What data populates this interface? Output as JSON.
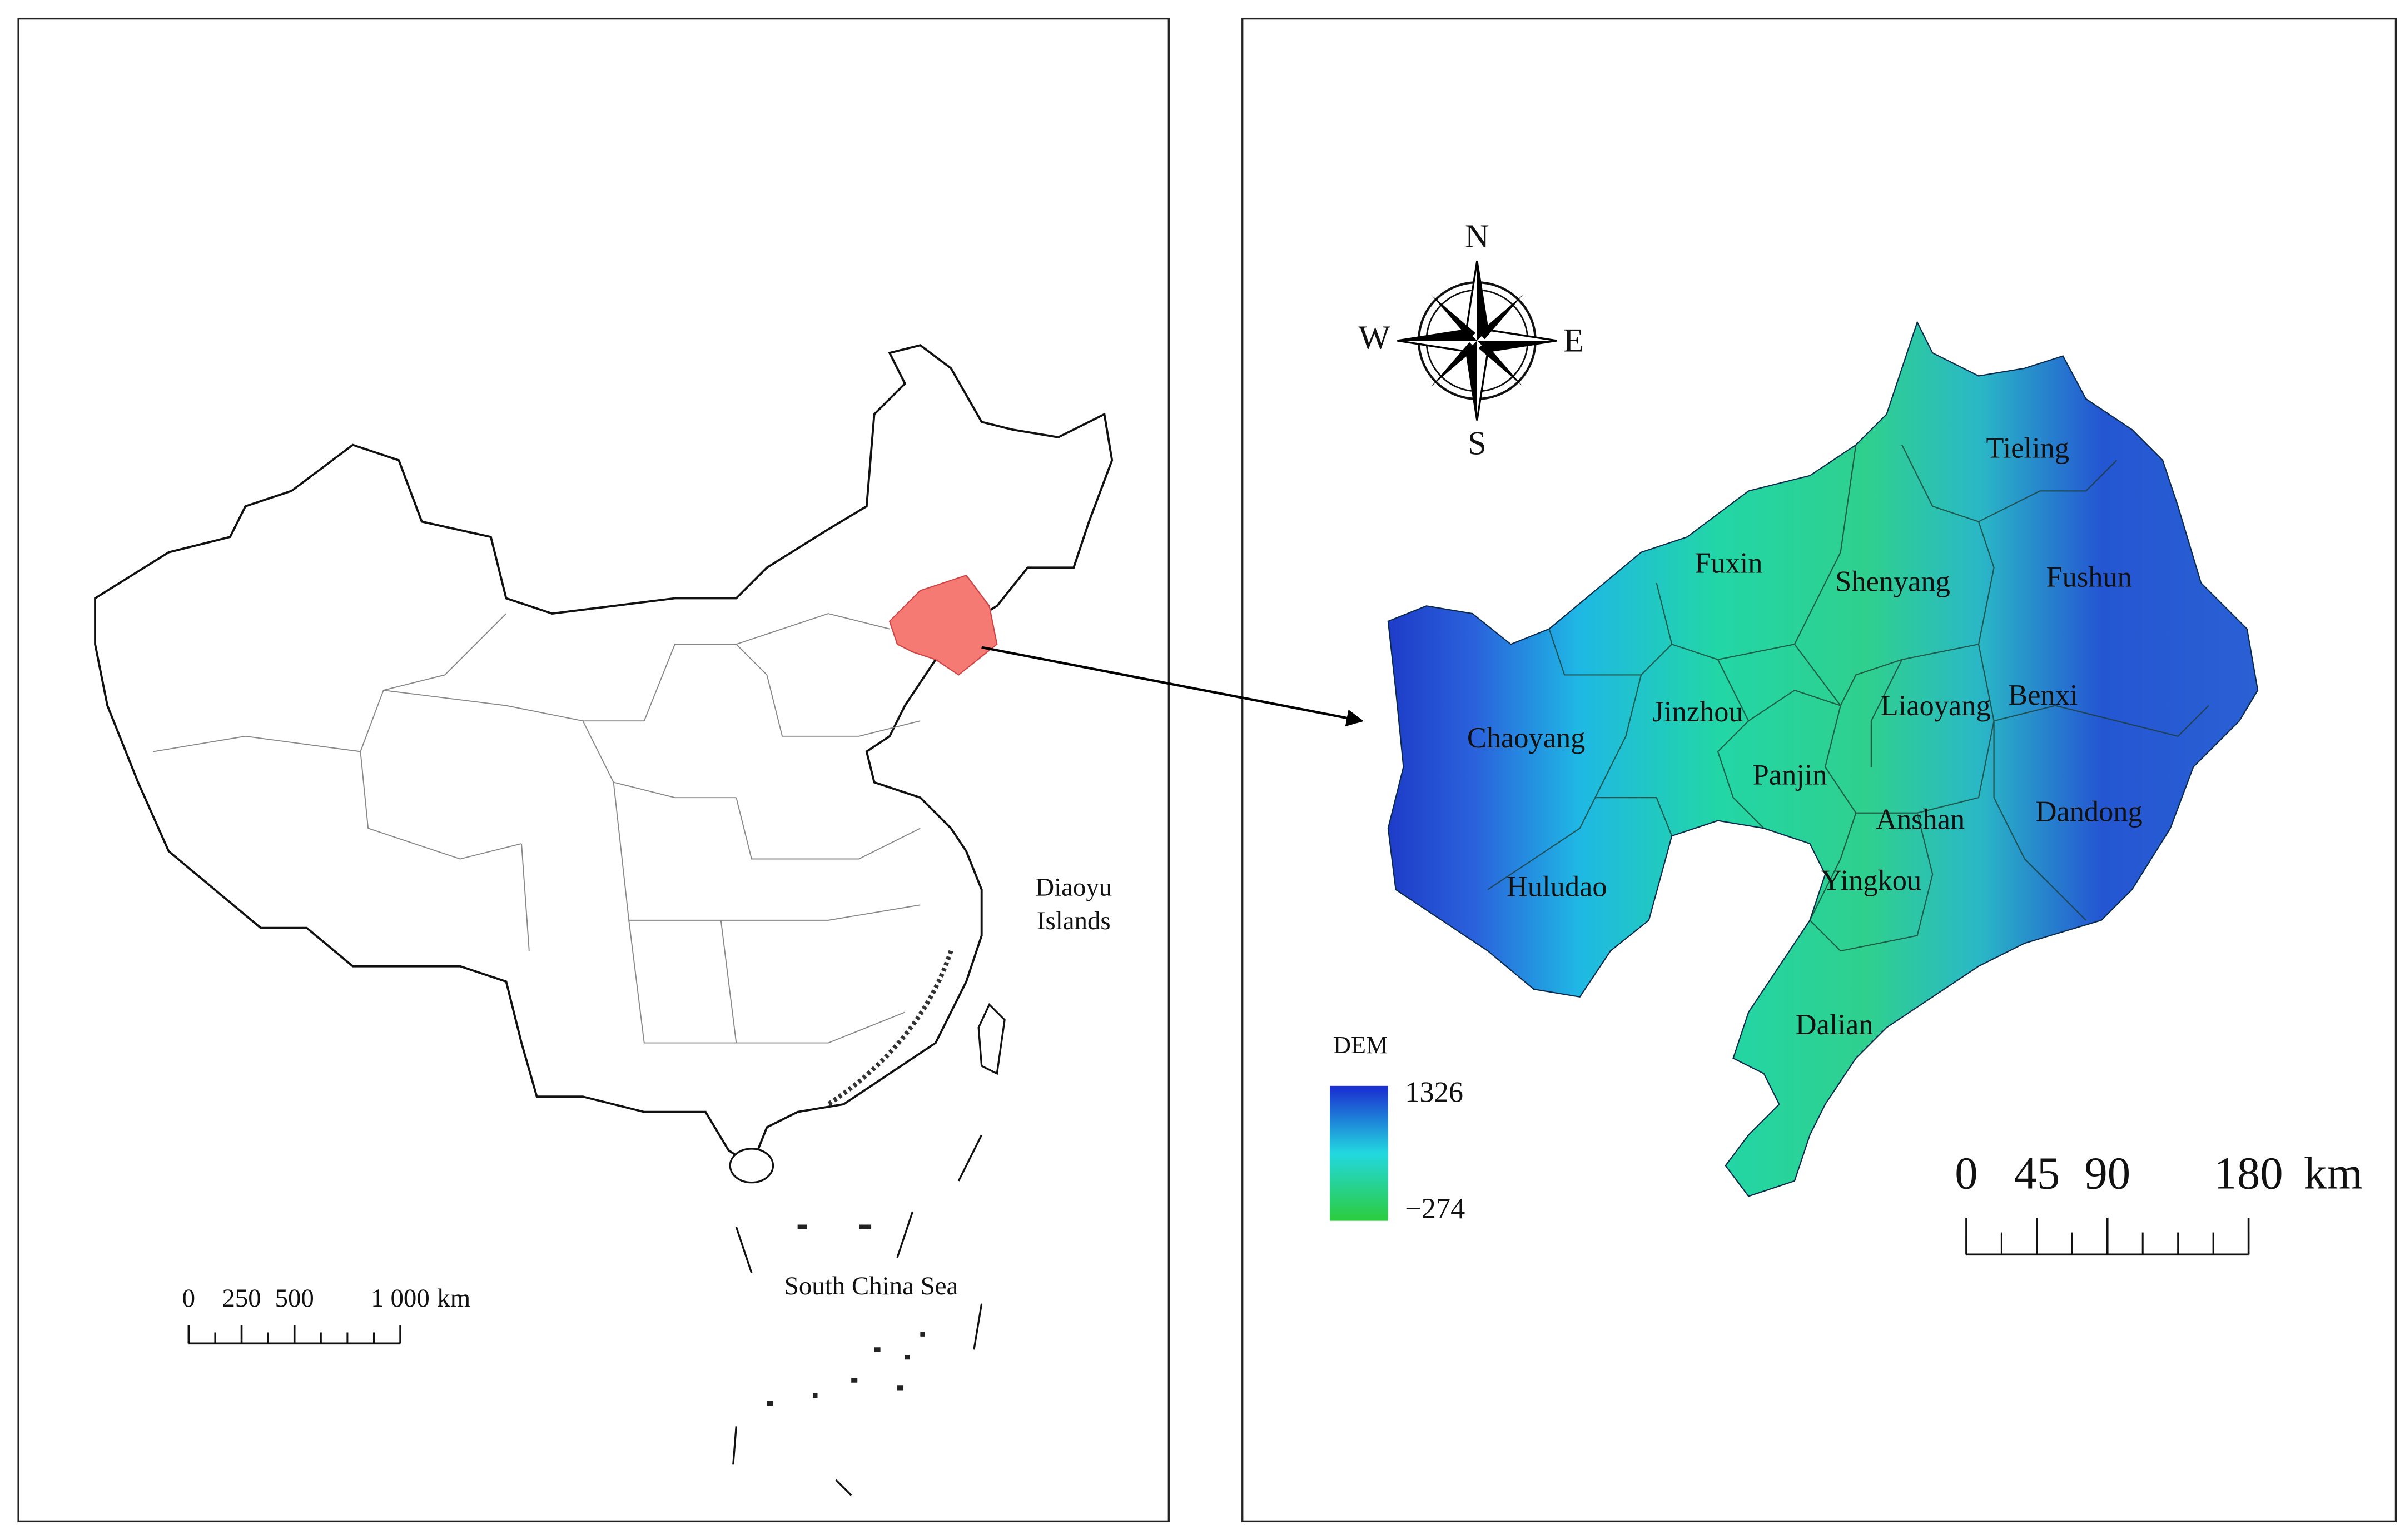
{
  "left_map": {
    "annotations": {
      "diaoyu": [
        "Diaoyu",
        "Islands"
      ],
      "sea": "South China Sea"
    },
    "scale_bar": {
      "ticks": [
        0,
        250,
        500,
        {
          "value": 1000,
          "label": "1 000"
        }
      ],
      "unit": "km"
    }
  },
  "right_map": {
    "compass": {
      "n": "N",
      "s": "S",
      "e": "E",
      "w": "W"
    },
    "cities": [
      "Tieling",
      "Fuxin",
      "Shenyang",
      "Fushun",
      "Liaoyang",
      "Benxi",
      "Chaoyang",
      "Jinzhou",
      "Panjin",
      "Anshan",
      "Dandong",
      "Huludao",
      "Yingkou",
      "Dalian"
    ],
    "legend": {
      "title": "DEM",
      "max": 1326,
      "min": {
        "value": -274,
        "label": "−274"
      }
    },
    "scale_bar": {
      "ticks": [
        0,
        45,
        90,
        180
      ],
      "unit": "km"
    }
  }
}
